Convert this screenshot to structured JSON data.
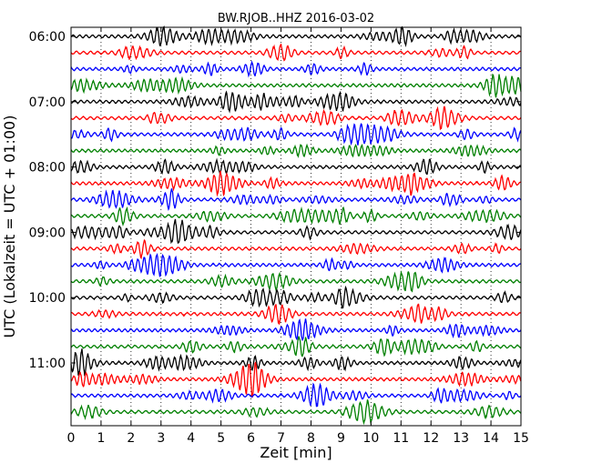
{
  "chart_data": {
    "type": "line",
    "title": "BW.RJOB..HHZ 2016-03-02",
    "xlabel": "Zeit  [min]",
    "ylabel": "UTC (Lokalzeit = UTC + 01:00)",
    "xlim": [
      0,
      15
    ],
    "x_ticks": [
      "0",
      "1",
      "2",
      "3",
      "4",
      "5",
      "6",
      "7",
      "8",
      "9",
      "10",
      "11",
      "12",
      "13",
      "14",
      "15"
    ],
    "y_ticks": [
      {
        "label": "06:00",
        "trace_index": 0
      },
      {
        "label": "07:00",
        "trace_index": 4
      },
      {
        "label": "08:00",
        "trace_index": 8
      },
      {
        "label": "09:00",
        "trace_index": 12
      },
      {
        "label": "10:00",
        "trace_index": 16
      },
      {
        "label": "11:00",
        "trace_index": 20
      }
    ],
    "grid": "vertical dotted",
    "trace_colors": [
      "#000000",
      "#ff0000",
      "#0000ff",
      "#008000"
    ],
    "traces": [
      {
        "start": "06:00"
      },
      {
        "start": "06:15"
      },
      {
        "start": "06:30"
      },
      {
        "start": "06:45"
      },
      {
        "start": "07:00"
      },
      {
        "start": "07:15"
      },
      {
        "start": "07:30"
      },
      {
        "start": "07:45"
      },
      {
        "start": "08:00"
      },
      {
        "start": "08:15"
      },
      {
        "start": "08:30"
      },
      {
        "start": "08:45"
      },
      {
        "start": "09:00"
      },
      {
        "start": "09:15"
      },
      {
        "start": "09:30"
      },
      {
        "start": "09:45"
      },
      {
        "start": "10:00"
      },
      {
        "start": "10:15"
      },
      {
        "start": "10:30"
      },
      {
        "start": "10:45"
      },
      {
        "start": "11:00"
      },
      {
        "start": "11:15"
      },
      {
        "start": "11:30"
      },
      {
        "start": "11:45"
      }
    ]
  }
}
